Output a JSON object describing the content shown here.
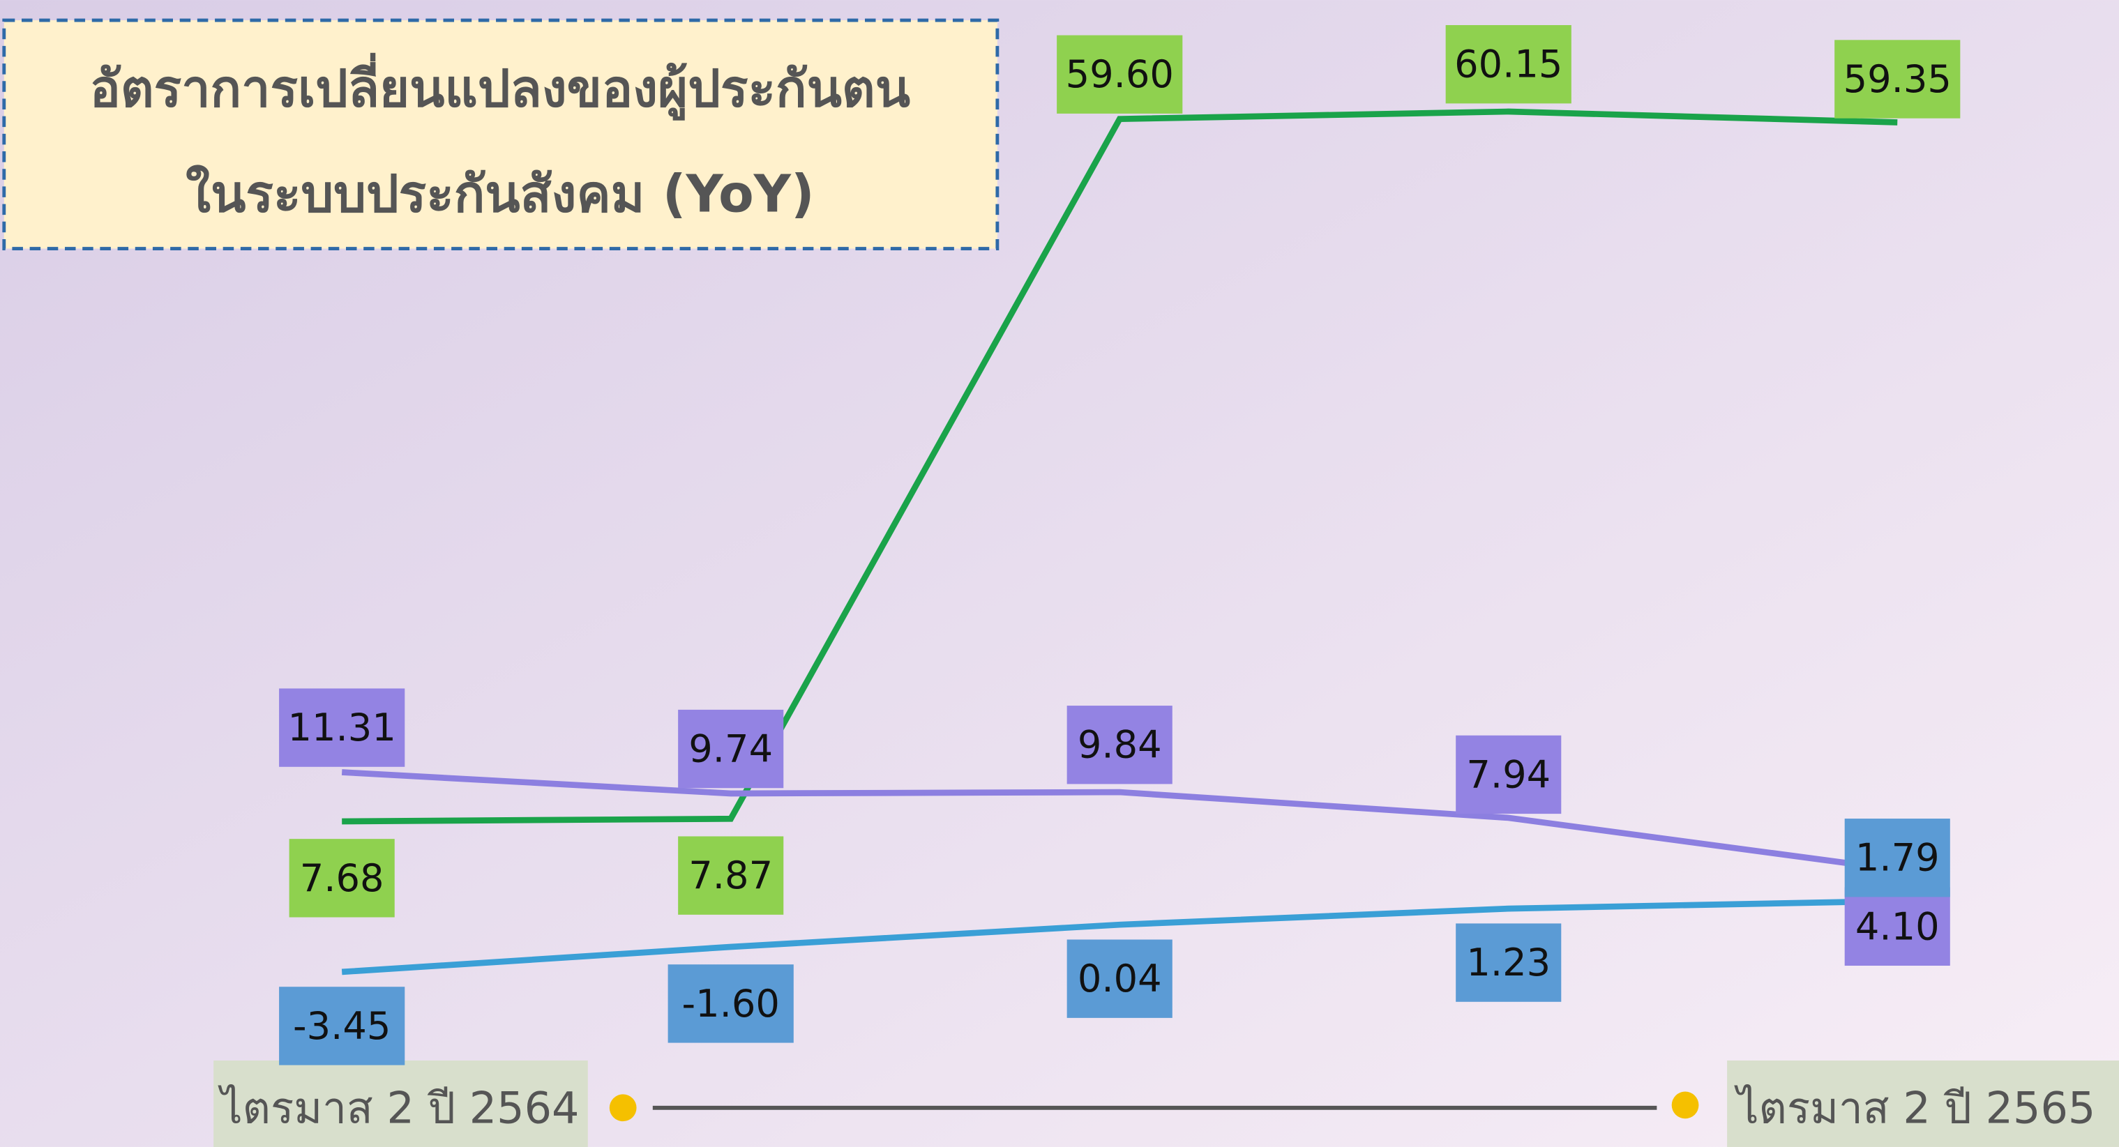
{
  "chart_data": {
    "type": "line",
    "title": [
      "อัตราการเปลี่ยนแปลงของผู้ประกันตน",
      "ในระบบประกันสังคม (YoY)"
    ],
    "categories": [
      "ไตรมาส 2 ปี 2564",
      null,
      null,
      null,
      "ไตรมาส 2 ปี 2565"
    ],
    "series": [
      {
        "color": "#1aa34a",
        "label_color": "#8fd14f",
        "values": [
          7.68,
          7.87,
          59.6,
          60.15,
          59.35
        ],
        "value_labels": [
          "7.68",
          "7.87",
          "59.60",
          "60.15",
          "59.35"
        ]
      },
      {
        "color": "#8c7fe0",
        "label_color": "#9383e3",
        "values": [
          11.31,
          9.74,
          9.84,
          7.94,
          4.1
        ],
        "value_labels": [
          "11.31",
          "9.74",
          "9.84",
          "7.94",
          "4.10"
        ]
      },
      {
        "color": "#3a9fd6",
        "label_color": "#5b9bd5",
        "values": [
          -3.45,
          -1.6,
          0.04,
          1.23,
          1.79
        ],
        "value_labels": [
          "-3.45",
          "-1.60",
          "0.04",
          "1.23",
          "1.79"
        ]
      }
    ],
    "ylim": [
      -10,
      65
    ]
  }
}
